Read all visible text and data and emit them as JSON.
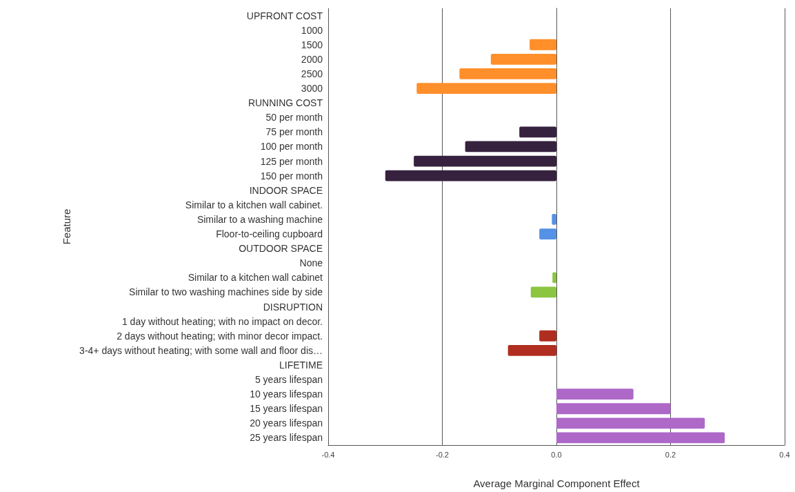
{
  "chart_data": {
    "type": "bar",
    "orientation": "horizontal",
    "xlabel": "Average Marginal Component Effect",
    "ylabel": "Feature",
    "categories": [
      "UPFRONT COST",
      "1000",
      "1500",
      "2000",
      "2500",
      "3000",
      "RUNNING COST",
      "50 per month",
      "75 per month",
      "100 per month",
      "125 per month",
      "150 per month",
      "INDOOR SPACE",
      "Similar to a kitchen wall cabinet.",
      "Similar to a washing machine",
      "Floor-to-ceiling cupboard",
      "OUTDOOR SPACE",
      "None",
      "Similar to a kitchen wall cabinet",
      "Similar to two washing machines side by side",
      "DISRUPTION",
      "1 day without heating; with no impact on decor.",
      "2 days without heating; with minor decor impact.",
      "3-4+ days without heating; with some wall and floor dis…",
      "LIFETIME",
      "5 years lifespan",
      "10 years lifespan",
      "15 years lifespan",
      "20 years lifespan",
      "25 years lifespan"
    ],
    "values": [
      null,
      null,
      -0.047,
      -0.115,
      -0.17,
      -0.245,
      null,
      null,
      -0.065,
      -0.16,
      -0.25,
      -0.3,
      null,
      null,
      -0.008,
      -0.03,
      null,
      null,
      -0.007,
      -0.045,
      null,
      null,
      -0.03,
      -0.085,
      null,
      null,
      0.135,
      0.2,
      0.26,
      0.295
    ],
    "colors": [
      null,
      null,
      "#ff8f2a",
      "#ff8f2a",
      "#ff8f2a",
      "#ff8f2a",
      null,
      null,
      "#36223e",
      "#36223e",
      "#36223e",
      "#36223e",
      null,
      null,
      "#5591e4",
      "#5591e4",
      null,
      null,
      "#8cc540",
      "#8cc540",
      null,
      null,
      "#b02e1f",
      "#b02e1f",
      null,
      null,
      "#ad68c8",
      "#ad68c8",
      "#ad68c8",
      "#ad68c8"
    ],
    "xlim": [
      -0.4,
      0.4
    ],
    "xticks": [
      -0.4,
      -0.2,
      {
        "value": 0,
        "label": "0.0"
      },
      0.2,
      0.4
    ],
    "grid": "x"
  }
}
